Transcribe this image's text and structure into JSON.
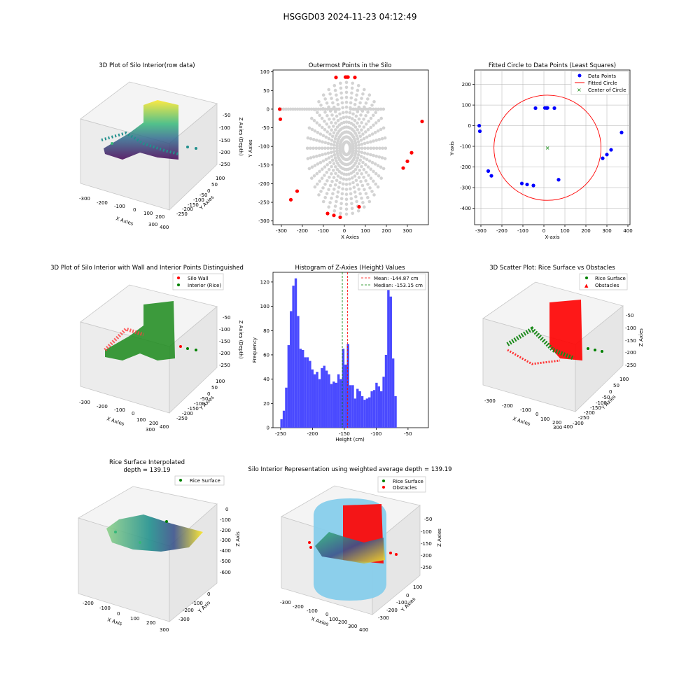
{
  "figure": {
    "suptitle": "HSGGD03 2024-11-23 04:12:49"
  },
  "colors": {
    "gray_points": "#d3d3d3",
    "red": "#ff0000",
    "green": "#008000",
    "blue": "#0000ff",
    "hist_blue": "#4a4aff",
    "skyblue": "#87ceeb",
    "viridis_dark": "#440154",
    "viridis_mid": "#21908d",
    "viridis_light": "#fde725",
    "grid": "#b0b0b0",
    "pane": "#f2f2f2"
  },
  "panel1": {
    "title": "3D Plot of Silo Interior(row data)",
    "xlabel": "X Axies",
    "ylabel": "Y Axies",
    "zlabel": "Z Axies (Depth)",
    "xticks": [
      "-300",
      "-200",
      "-100",
      "0",
      "100",
      "200",
      "300",
      "400"
    ],
    "yticks": [
      "100",
      "50",
      "0",
      "-50",
      "-100",
      "-150",
      "-200",
      "-250",
      "-300"
    ],
    "zticks": [
      "-50",
      "-100",
      "-150",
      "-200",
      "-250"
    ]
  },
  "panel4": {
    "title": "3D Plot of Silo Interior with Wall and Interior Points Distinguished",
    "xlabel": "X Axies",
    "ylabel": "Y Axies",
    "zlabel": "Z Axies (Depth)",
    "legend": [
      "Silo Wall",
      "Interior (Rice)"
    ],
    "xticks": [
      "-300",
      "-200",
      "-100",
      "0",
      "100",
      "200",
      "300",
      "400"
    ],
    "yticks": [
      "100",
      "50",
      "0",
      "-50",
      "-100",
      "-150",
      "-200",
      "-250",
      "-300"
    ],
    "zticks": [
      "-50",
      "-100",
      "-150",
      "-200",
      "-250"
    ]
  },
  "panel6": {
    "title": "3D Scatter Plot: Rice Surface vs Obstacles",
    "xlabel": "X Axies",
    "ylabel": "Y Axies",
    "zlabel": "Z Axies",
    "legend": [
      "Rice Surface",
      "Obstacles"
    ],
    "xticks": [
      "-300",
      "-200",
      "-100",
      "0",
      "100",
      "200",
      "300",
      "400"
    ],
    "yticks": [
      "100",
      "50",
      "0",
      "-50",
      "-100",
      "-150",
      "-200",
      "-250",
      "-300"
    ],
    "zticks": [
      "-50",
      "-100",
      "-150",
      "-200",
      "-250"
    ]
  },
  "panel7": {
    "title_line1": "Rice Surface Interpolated",
    "title_line2": "depth = 139.19",
    "xlabel": "X Axis",
    "ylabel": "Y Axis",
    "zlabel": "Z Axis",
    "legend": [
      "Rice Surface"
    ],
    "xticks": [
      "-200",
      "-100",
      "0",
      "100",
      "200",
      "300"
    ],
    "yticks": [
      "0",
      "-100",
      "-200",
      "-300"
    ],
    "zticks": [
      "0",
      "-100",
      "-200",
      "-300",
      "-400",
      "-500",
      "-600"
    ]
  },
  "panel8": {
    "title": "Silo Interior Representation using weighted average depth = 139.19",
    "xlabel": "X Axies",
    "ylabel": "Y Axies",
    "zlabel": "Z Axies",
    "legend": [
      "Rice Surface",
      "Obstacles"
    ],
    "xticks": [
      "-300",
      "-200",
      "-100",
      "0",
      "100",
      "200",
      "300",
      "400"
    ],
    "yticks": [
      "100",
      "0",
      "-100",
      "-200",
      "-300"
    ],
    "zticks": [
      "-50",
      "-100",
      "-150",
      "-200",
      "-250"
    ]
  },
  "chart_data": [
    {
      "type": "scatter",
      "title": "Outermost Points in the Silo",
      "xlabel": "X Axies",
      "ylabel": "Y Axies",
      "xlim": [
        -340,
        400
      ],
      "ylim": [
        -310,
        105
      ],
      "xticks": [
        -300,
        -200,
        -100,
        0,
        100,
        200,
        300
      ],
      "yticks": [
        -300,
        -250,
        -200,
        -150,
        -100,
        -50,
        0,
        50,
        100
      ],
      "grid": false,
      "series": [
        {
          "color": "#ff0000",
          "points": [
            [
              -308,
              0
            ],
            [
              -305,
              -27
            ],
            [
              -40,
              85
            ],
            [
              5,
              86
            ],
            [
              12,
              86
            ],
            [
              17,
              86
            ],
            [
              50,
              85
            ],
            [
              370,
              -33
            ],
            [
              320,
              -117
            ],
            [
              300,
              -140
            ],
            [
              280,
              -158
            ],
            [
              70,
              -262
            ],
            [
              -20,
              -290
            ],
            [
              -50,
              -285
            ],
            [
              -80,
              -280
            ],
            [
              -225,
              -220
            ],
            [
              -255,
              -243
            ]
          ]
        }
      ]
    },
    {
      "type": "scatter",
      "title": "Fitted Circle to Data Points (Least Squares)",
      "xlabel": "X-axis",
      "ylabel": "Y-axis",
      "xlim": [
        -330,
        410
      ],
      "ylim": [
        -480,
        270
      ],
      "xticks": [
        -300,
        -200,
        -100,
        0,
        100,
        200,
        300,
        400
      ],
      "yticks": [
        -400,
        -300,
        -200,
        -100,
        0,
        100,
        200
      ],
      "grid": true,
      "legend": "top-right",
      "legend_entries": [
        "Data Points",
        "Fitted Circle",
        "Center of Circle"
      ],
      "data_points": [
        [
          -308,
          0
        ],
        [
          -305,
          -27
        ],
        [
          -40,
          85
        ],
        [
          5,
          86
        ],
        [
          12,
          86
        ],
        [
          17,
          86
        ],
        [
          50,
          85
        ],
        [
          370,
          -33
        ],
        [
          320,
          -117
        ],
        [
          300,
          -140
        ],
        [
          280,
          -158
        ],
        [
          70,
          -262
        ],
        [
          -50,
          -290
        ],
        [
          -80,
          -285
        ],
        [
          -105,
          -280
        ],
        [
          -250,
          -243
        ],
        [
          -265,
          -220
        ]
      ],
      "circle": {
        "center": [
          17,
          -107
        ],
        "radius": 255
      }
    },
    {
      "type": "bar",
      "title": "Histogram of Z-Axies (Height) Values",
      "xlabel": "Height (cm)",
      "ylabel": "Frequency",
      "xlim": [
        -262,
        -18
      ],
      "ylim": [
        0,
        128
      ],
      "xticks": [
        -250,
        -200,
        -150,
        -100,
        -50
      ],
      "yticks": [
        0,
        20,
        40,
        60,
        80,
        100,
        120
      ],
      "bin_start": -250.5,
      "bin_width": 3.73,
      "values": [
        7,
        14,
        33,
        68,
        96,
        117,
        123,
        92,
        65,
        64,
        58,
        58,
        55,
        48,
        44,
        46,
        40,
        49,
        51,
        47,
        44,
        36,
        38,
        37,
        44,
        40,
        65,
        52,
        69,
        35,
        35,
        24,
        32,
        30,
        26,
        23,
        24,
        25,
        30,
        31,
        37,
        34,
        30,
        42,
        60,
        115,
        108,
        57,
        26
      ],
      "legend_entries": [
        "Mean: -144.87 cm",
        "Median: -153.15 cm"
      ],
      "mean": -144.87,
      "median": -153.15
    }
  ]
}
